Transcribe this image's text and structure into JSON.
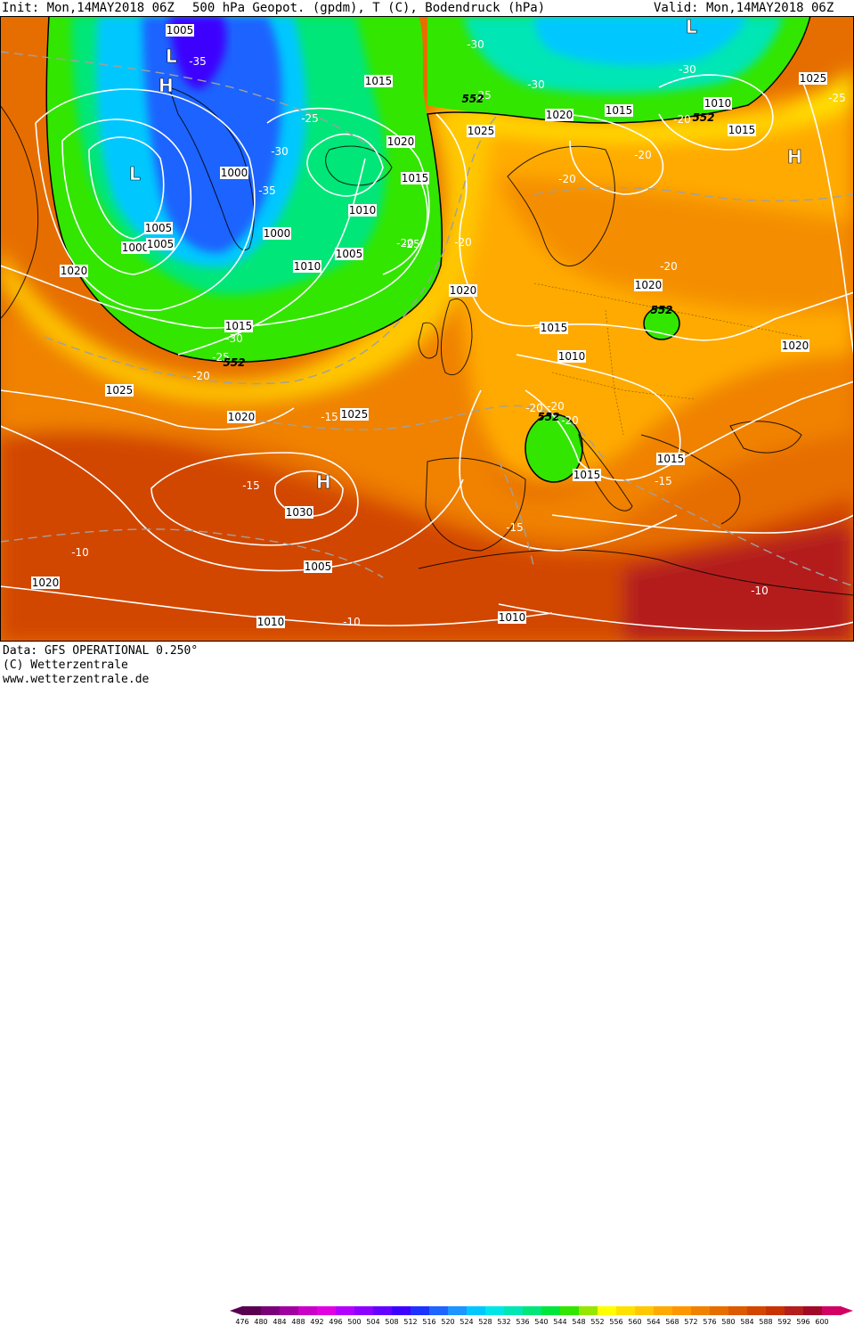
{
  "header": {
    "init": "Init: Mon,14MAY2018 06Z",
    "title": "500 hPa Geopot. (gpdm), T (C), Bodendruck (hPa)",
    "valid": "Valid: Mon,14MAY2018 06Z"
  },
  "footer": {
    "data_line": "Data: GFS OPERATIONAL 0.250°",
    "copyright": "(C) Wetterzentrale",
    "url": "www.wetterzentrale.de"
  },
  "legend": {
    "ticks": [
      "476",
      "480",
      "484",
      "488",
      "492",
      "496",
      "500",
      "504",
      "508",
      "512",
      "516",
      "520",
      "524",
      "528",
      "532",
      "536",
      "540",
      "544",
      "548",
      "552",
      "556",
      "560",
      "564",
      "568",
      "572",
      "576",
      "580",
      "584",
      "588",
      "592",
      "596",
      "600"
    ],
    "colors": [
      "#5a0050",
      "#7a007a",
      "#a000a0",
      "#c800c8",
      "#e000e0",
      "#b400ff",
      "#8c00ff",
      "#6400ff",
      "#3c00ff",
      "#1e32ff",
      "#1e64ff",
      "#1e96ff",
      "#00c8ff",
      "#00e6e6",
      "#00e6b4",
      "#00e678",
      "#00e63c",
      "#32e600",
      "#96e600",
      "#ffff00",
      "#ffe100",
      "#ffc800",
      "#ffaa00",
      "#ff9600",
      "#f08200",
      "#e66e00",
      "#dc5a00",
      "#d24600",
      "#c83200",
      "#b41e1e",
      "#a00a28",
      "#d20064"
    ]
  },
  "map_colors": {
    "deep_blue": "#1e32ff",
    "blue": "#1e64ff",
    "cyan": "#00c8ff",
    "teal": "#00e6b4",
    "green": "#00e63c",
    "light_green": "#32e600",
    "yellow": "#ffff00",
    "yellow_orange": "#ffc800",
    "orange": "#ffaa00",
    "dark_orange": "#f08200",
    "red_orange": "#dc5a00",
    "red": "#c83200",
    "dark_red": "#a00a28"
  },
  "pressure_centers": [
    {
      "id": "L-greenland-north",
      "label": "L"
    },
    {
      "id": "H-greenland-north",
      "label": "H"
    },
    {
      "id": "L-labrador",
      "label": "L"
    },
    {
      "id": "L-barents",
      "label": "L"
    },
    {
      "id": "H-russia",
      "label": "H"
    },
    {
      "id": "H-azores",
      "label": "H"
    }
  ],
  "isobar_labels": [
    "1005",
    "1015",
    "1020",
    "1015",
    "1000",
    "1010",
    "1000",
    "1005",
    "1000",
    "1005",
    "1010",
    "1005",
    "1020",
    "1015",
    "1025",
    "1030",
    "1020",
    "1025",
    "1020",
    "1025",
    "1010",
    "1015",
    "1020",
    "1005",
    "1010",
    "1015",
    "1020",
    "1020",
    "1015",
    "1010",
    "1015",
    "1015",
    "1025",
    "1020",
    "1010"
  ],
  "temperature_labels": [
    "-35",
    "-30",
    "-25",
    "-30",
    "-35",
    "-25",
    "-30",
    "-30",
    "-25",
    "-20",
    "-20",
    "-20",
    "-20",
    "-25",
    "-30",
    "-20",
    "-20",
    "-25",
    "-20",
    "-15",
    "-15",
    "-15",
    "-15",
    "-10",
    "-10",
    "-10",
    "-20",
    "-20",
    "-20"
  ],
  "geopotential_labels": [
    "552",
    "552",
    "552",
    "552",
    "552"
  ]
}
